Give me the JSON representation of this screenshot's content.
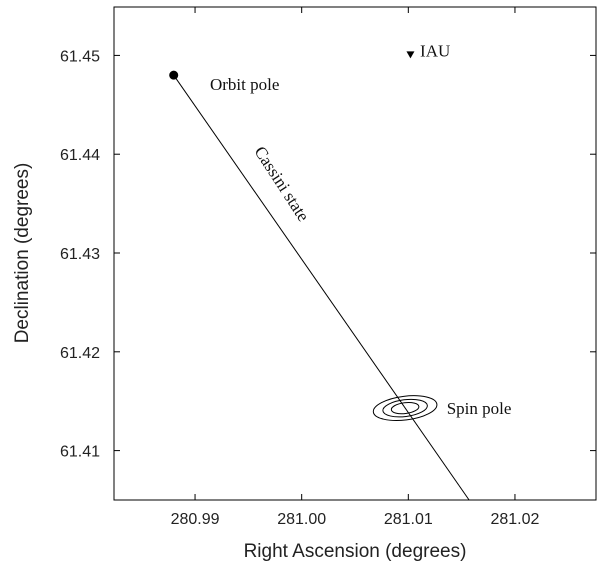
{
  "chart_data": {
    "type": "scatter",
    "xlabel": "Right Ascension (degrees)",
    "ylabel": "Declination (degrees)",
    "xlim": [
      280.9824,
      281.0276
    ],
    "ylim": [
      61.405,
      61.4549
    ],
    "xticks": [
      280.99,
      281.0,
      281.01,
      281.02
    ],
    "xtick_labels": [
      "280.99",
      "281.00",
      "281.01",
      "281.02"
    ],
    "yticks": [
      61.41,
      61.42,
      61.43,
      61.44,
      61.45
    ],
    "ytick_labels": [
      "61.41",
      "61.42",
      "61.43",
      "61.44",
      "61.45"
    ],
    "grid": false,
    "series": [
      {
        "name": "Cassini state",
        "kind": "line",
        "points": [
          [
            280.988,
            61.448
          ],
          [
            281.0157,
            61.405
          ]
        ]
      },
      {
        "name": "Orbit pole",
        "kind": "marker",
        "marker": "filled-circle",
        "points": [
          [
            280.988,
            61.448
          ]
        ]
      },
      {
        "name": "IAU",
        "kind": "marker",
        "marker": "down-triangle",
        "points": [
          [
            281.0102,
            61.4501
          ]
        ]
      },
      {
        "name": "Spin pole",
        "kind": "contours",
        "center": [
          281.0097,
          61.4143
        ],
        "ellipses": [
          {
            "rx_deg": 0.003,
            "ry_deg": 0.0012
          },
          {
            "rx_deg": 0.0021,
            "ry_deg": 0.00085
          },
          {
            "rx_deg": 0.0013,
            "ry_deg": 0.00055
          }
        ],
        "orientation_deg": -7
      }
    ],
    "annotations": [
      {
        "text": "Orbit pole",
        "x": 280.9914,
        "y": 61.4465
      },
      {
        "text": "IAU",
        "x": 281.0111,
        "y": 61.4499
      },
      {
        "text": "Spin pole",
        "x": 281.0136,
        "y": 61.4137
      },
      {
        "text": "Cassini state",
        "x": 280.9977,
        "y": 61.4367,
        "rotation_deg": 57
      }
    ],
    "colors": {
      "line": "#000000",
      "marker": "#000000",
      "axis": "#000000"
    }
  }
}
